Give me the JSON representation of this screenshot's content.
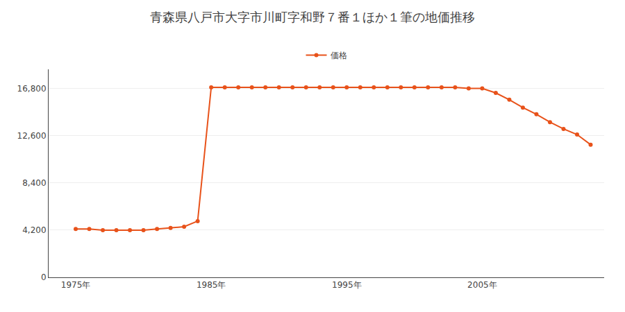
{
  "chart_data": {
    "type": "line",
    "title": "青森県八戸市大字市川町字和野７番１ほか１筆の地価推移",
    "x": [
      1975,
      1976,
      1977,
      1978,
      1979,
      1980,
      1981,
      1982,
      1983,
      1984,
      1985,
      1986,
      1987,
      1988,
      1989,
      1990,
      1991,
      1992,
      1993,
      1994,
      1995,
      1996,
      1997,
      1998,
      1999,
      2000,
      2001,
      2002,
      2003,
      2004,
      2005,
      2006,
      2007,
      2008,
      2009,
      2010,
      2011,
      2012,
      2013
    ],
    "series": [
      {
        "name": "価格",
        "color": "#E8521A",
        "marker": "circle",
        "values": [
          4300,
          4300,
          4200,
          4200,
          4200,
          4200,
          4300,
          4400,
          4500,
          5000,
          16900,
          16900,
          16900,
          16900,
          16900,
          16900,
          16900,
          16900,
          16900,
          16900,
          16900,
          16900,
          16900,
          16900,
          16900,
          16900,
          16900,
          16900,
          16900,
          16800,
          16800,
          16400,
          15800,
          15100,
          14500,
          13800,
          13200,
          12700,
          11800
        ]
      }
    ],
    "xlim": [
      1973,
      2014
    ],
    "xticks": [
      {
        "value": 1975,
        "label": "1975年"
      },
      {
        "value": 1985,
        "label": "1985年"
      },
      {
        "value": 1995,
        "label": "1995年"
      },
      {
        "value": 2005,
        "label": "2005年"
      }
    ],
    "ylim": [
      0,
      18500
    ],
    "yticks": [
      0,
      {
        "value": 4200,
        "label": "4,200"
      },
      {
        "value": 8400,
        "label": "8,400"
      },
      {
        "value": 12600,
        "label": "12,600"
      },
      {
        "value": 16800,
        "label": "16,800"
      }
    ],
    "grid": true,
    "legend": "top"
  }
}
